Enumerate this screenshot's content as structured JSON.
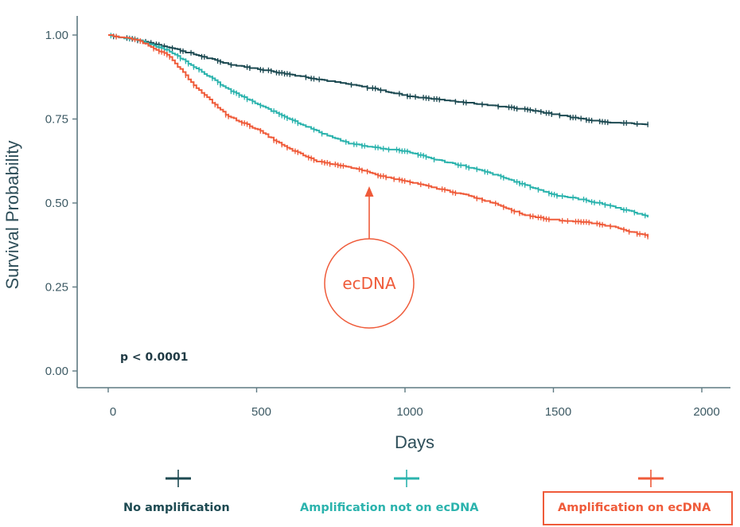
{
  "chart_data": {
    "type": "line",
    "subtype": "kaplan-meier survival curve",
    "xlabel": "Days",
    "ylabel": "Survival Probability",
    "xlim": [
      -100,
      2100
    ],
    "ylim": [
      -0.05,
      1.05
    ],
    "x_ticks": [
      0,
      500,
      1000,
      1500,
      2000
    ],
    "x_tick_labels": [
      "0",
      "500",
      "1000",
      "1500",
      "2000"
    ],
    "y_ticks": [
      0,
      0.25,
      0.5,
      0.75,
      1.0
    ],
    "y_tick_labels": [
      "0.00",
      "0.25",
      "0.50",
      "0.75",
      "1.00"
    ],
    "annotation": "p < 0.0001",
    "callout": {
      "label": "ecDNA",
      "points_to_day": 880,
      "points_to_prob": 0.56
    },
    "series": [
      {
        "name": "No amplification",
        "color": "#1d4a52",
        "days": [
          0,
          100,
          200,
          300,
          400,
          500,
          600,
          700,
          800,
          900,
          1000,
          1100,
          1200,
          1300,
          1400,
          1500,
          1600,
          1700,
          1820
        ],
        "survival": [
          1.0,
          0.985,
          0.965,
          0.94,
          0.915,
          0.9,
          0.885,
          0.87,
          0.855,
          0.84,
          0.82,
          0.81,
          0.8,
          0.79,
          0.78,
          0.765,
          0.75,
          0.74,
          0.735
        ]
      },
      {
        "name": "Amplification not on ecDNA",
        "color": "#2bb3ad",
        "days": [
          0,
          100,
          200,
          300,
          400,
          500,
          600,
          700,
          800,
          900,
          1000,
          1100,
          1200,
          1300,
          1400,
          1500,
          1600,
          1700,
          1820
        ],
        "survival": [
          1.0,
          0.985,
          0.955,
          0.9,
          0.84,
          0.795,
          0.755,
          0.715,
          0.68,
          0.665,
          0.655,
          0.63,
          0.61,
          0.585,
          0.555,
          0.525,
          0.51,
          0.49,
          0.46
        ]
      },
      {
        "name": "Amplification on ecDNA",
        "color": "#ef5b3a",
        "days": [
          0,
          100,
          200,
          250,
          300,
          400,
          500,
          600,
          700,
          800,
          900,
          1000,
          1100,
          1200,
          1300,
          1400,
          1500,
          1600,
          1700,
          1820
        ],
        "survival": [
          1.0,
          0.985,
          0.94,
          0.89,
          0.84,
          0.76,
          0.72,
          0.665,
          0.625,
          0.61,
          0.585,
          0.565,
          0.545,
          0.525,
          0.5,
          0.465,
          0.45,
          0.445,
          0.43,
          0.4
        ]
      }
    ]
  }
}
